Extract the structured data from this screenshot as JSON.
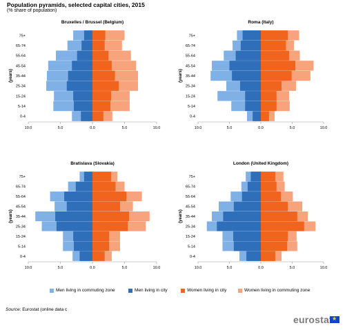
{
  "title": "Population pyramids, selected capital cities, 2015",
  "subtitle": "(% share of population)",
  "source_label": "Source:",
  "source_text": "Eurostat (online data c",
  "brand": "eurostat",
  "colors": {
    "men_commuting": "#7fb0e6",
    "men_city": "#2f6fba",
    "women_city": "#f0641e",
    "women_commuting": "#f7a47d"
  },
  "legend": [
    {
      "label": "Men living in commuting zone",
      "color": "#7fb0e6"
    },
    {
      "label": "Men living in city",
      "color": "#2f6fba"
    },
    {
      "label": "Women living in city",
      "color": "#f0641e"
    },
    {
      "label": "Women living in commuting zone",
      "color": "#f7a47d"
    }
  ],
  "chart_data": [
    {
      "type": "bar",
      "title": "Bruxelles / Brussel  (Belgium)",
      "ylabel": "(years)",
      "categories": [
        "0-4",
        "5-14",
        "15-24",
        "25-34",
        "35-44",
        "45-54",
        "55-64",
        "65-74",
        "75+"
      ],
      "xlim": [
        -10,
        10
      ],
      "xticks": [
        "10.0",
        "5.0",
        "0.0",
        "5.0",
        "10.0"
      ],
      "series": [
        {
          "name": "Men living in commuting zone",
          "values": [
            3.2,
            6.1,
            6.0,
            7.2,
            7.1,
            6.9,
            5.7,
            3.9,
            3.0
          ]
        },
        {
          "name": "Men living in city",
          "values": [
            1.8,
            2.9,
            3.0,
            4.0,
            3.8,
            3.2,
            2.4,
            1.7,
            1.3
          ]
        },
        {
          "name": "Women living in city",
          "values": [
            1.7,
            2.8,
            2.9,
            4.1,
            3.5,
            3.0,
            2.5,
            1.9,
            2.0
          ]
        },
        {
          "name": "Women living in commuting zone",
          "values": [
            3.1,
            5.8,
            5.8,
            7.1,
            7.1,
            6.8,
            6.0,
            4.6,
            5.0
          ]
        }
      ]
    },
    {
      "type": "bar",
      "title": "Roma (Italy)",
      "ylabel": "(years)",
      "categories": [
        "0-4",
        "5-14",
        "15-24",
        "25-34",
        "35-44",
        "45-54",
        "55-64",
        "65-74",
        "75+"
      ],
      "xlim": [
        -10,
        10
      ],
      "xticks": [
        "10.0",
        "5.0",
        "0.0",
        "5.0",
        "10.0"
      ],
      "series": [
        {
          "name": "Men living in commuting zone",
          "values": [
            2.2,
            4.7,
            6.9,
            5.5,
            8.0,
            7.8,
            5.9,
            4.5,
            3.8
          ]
        },
        {
          "name": "Men living in city",
          "values": [
            1.3,
            2.5,
            2.5,
            3.3,
            4.6,
            5.0,
            4.0,
            3.2,
            2.9
          ]
        },
        {
          "name": "Women living in city",
          "values": [
            1.3,
            2.5,
            2.5,
            3.3,
            4.9,
            5.5,
            4.5,
            4.0,
            4.3
          ]
        },
        {
          "name": "Women living in commuting zone",
          "values": [
            2.2,
            4.6,
            4.5,
            5.6,
            7.9,
            8.4,
            6.2,
            5.3,
            6.1
          ]
        }
      ]
    },
    {
      "type": "bar",
      "title": "Bratislava (Slovakia)",
      "ylabel": "(years)",
      "categories": [
        "0-4",
        "5-14",
        "15-24",
        "25-34",
        "35-44",
        "45-54",
        "55-64",
        "65-74",
        "75+"
      ],
      "xlim": [
        -10,
        10
      ],
      "xticks": [
        "10.0",
        "5.0",
        "0.0",
        "5.0",
        "10.0"
      ],
      "series": [
        {
          "name": "Men living in commuting zone",
          "values": [
            3.1,
            4.6,
            4.6,
            7.9,
            8.9,
            5.9,
            6.6,
            3.8,
            2.0
          ]
        },
        {
          "name": "Men living in city",
          "values": [
            2.0,
            2.9,
            3.0,
            5.6,
            5.8,
            4.0,
            4.4,
            2.6,
            1.3
          ]
        },
        {
          "name": "Women living in city",
          "values": [
            1.9,
            2.6,
            2.6,
            5.5,
            5.7,
            4.3,
            5.3,
            3.6,
            2.9
          ]
        },
        {
          "name": "Women living in commuting zone",
          "values": [
            3.0,
            4.3,
            4.3,
            8.3,
            8.9,
            6.3,
            7.7,
            5.0,
            3.9
          ]
        }
      ]
    },
    {
      "type": "bar",
      "title": "London (United Kingdom)",
      "ylabel": "(years)",
      "categories": [
        "0-4",
        "5-14",
        "15-24",
        "25-34",
        "35-44",
        "45-54",
        "55-64",
        "65-74",
        "75+"
      ],
      "xlim": [
        -10,
        10
      ],
      "xticks": [
        "10.0",
        "5.0",
        "0.0",
        "5.0",
        "10.0"
      ],
      "series": [
        {
          "name": "Men living in commuting zone",
          "values": [
            3.4,
            6.1,
            6.1,
            8.6,
            7.8,
            6.7,
            4.8,
            3.1,
            2.4
          ]
        },
        {
          "name": "Men living in city",
          "values": [
            2.3,
            4.3,
            4.4,
            7.0,
            6.0,
            4.3,
            3.0,
            2.1,
            1.6
          ]
        },
        {
          "name": "Women living in city",
          "values": [
            2.3,
            4.2,
            4.3,
            6.9,
            5.8,
            4.3,
            3.2,
            2.5,
            2.3
          ]
        },
        {
          "name": "Women living in commuting zone",
          "values": [
            3.3,
            5.8,
            5.7,
            8.7,
            7.5,
            6.6,
            5.1,
            3.8,
            3.6
          ]
        }
      ]
    }
  ]
}
